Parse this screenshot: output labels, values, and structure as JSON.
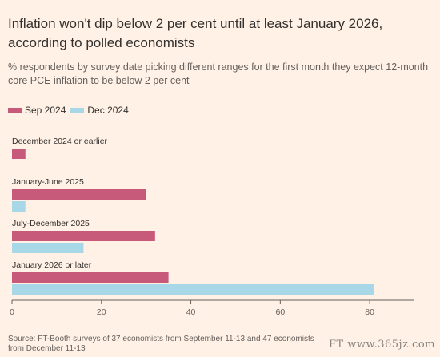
{
  "title": "Inflation won't dip below 2 per cent until at least January 2026, according to polled economists",
  "subtitle": "% respondents by survey date picking different ranges for the first month they expect 12-month core PCE inflation to be below 2 per cent",
  "source": "Source: FT-Booth surveys of 37 economists from September 11-13 and 47 economists from December 11-13",
  "watermark": "FT  www.365jz.com",
  "chart_data": {
    "type": "bar",
    "orientation": "horizontal",
    "categories": [
      "December 2024 or earlier",
      "January-June 2025",
      "July-December 2025",
      "January 2026 or later"
    ],
    "series": [
      {
        "name": "Sep 2024",
        "color": "#c75a7a",
        "values": [
          3,
          30,
          32,
          35
        ]
      },
      {
        "name": "Dec 2024",
        "color": "#a8d8e8",
        "values": [
          0,
          3,
          16,
          81
        ]
      }
    ],
    "xlim": [
      0,
      90
    ],
    "xticks": [
      0,
      20,
      40,
      60,
      80
    ],
    "grid": false,
    "legend": "top-left"
  }
}
